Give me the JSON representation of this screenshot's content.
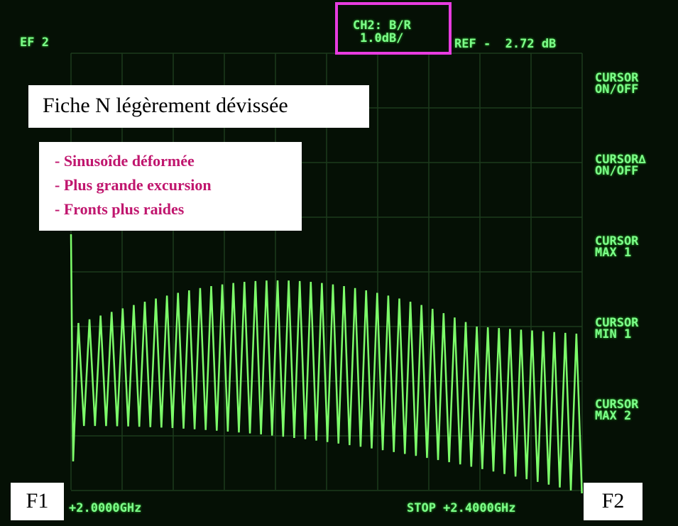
{
  "header": {
    "ref_label": "EF 2",
    "channel": "CH2: B/R",
    "scale": "1.0dB/",
    "reference": "REF -  2.72 dB"
  },
  "annotation": {
    "title": "Fiche N légèrement dévissée",
    "bullets": [
      "- Sinusoîde déformée",
      "- Plus grande excursion",
      "- Fronts plus raides"
    ]
  },
  "softkeys": [
    [
      "CURSOR",
      "ON/OFF"
    ],
    [
      "CURSOR∆",
      "ON/OFF"
    ],
    [
      "CURSOR",
      "MAX 1"
    ],
    [
      "CURSOR",
      "MIN 1"
    ],
    [
      "CURSOR",
      "MAX 2"
    ]
  ],
  "footer": {
    "start": "+2.0000GHz",
    "stop": "STOP +2.4000GHz"
  },
  "markers": {
    "f1": "F1",
    "f2": "F2"
  }
}
